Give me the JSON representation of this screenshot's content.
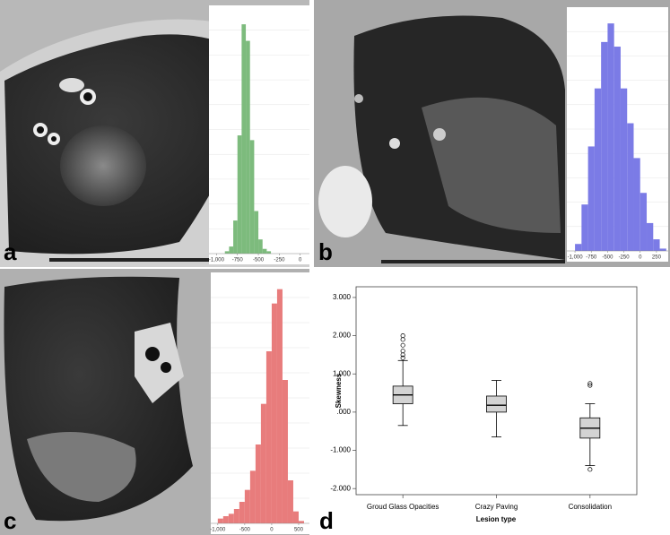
{
  "chart_data": [
    {
      "type": "histogram",
      "panel": "a",
      "color": "#7dbb7d",
      "bins": [
        -1000,
        -950,
        -900,
        -850,
        -800,
        -750,
        -700,
        -650,
        -600,
        -550,
        -500,
        -450,
        -400,
        -350,
        -300,
        -250,
        -200,
        -150,
        -100,
        -50,
        0
      ],
      "counts": [
        0,
        0,
        1,
        3,
        14,
        50,
        97,
        90,
        48,
        18,
        6,
        2,
        1,
        0,
        0,
        0,
        0,
        0,
        0,
        0
      ],
      "xlim": [
        -1090,
        110
      ],
      "ylim": [
        0,
        105
      ],
      "xticks": [
        {
          "value": -1000,
          "label": "-1,000"
        },
        -750,
        -500,
        -250,
        0
      ]
    },
    {
      "type": "histogram",
      "panel": "b",
      "color": "#7b7be6",
      "bins": [
        -1000,
        -900,
        -800,
        -700,
        -600,
        -500,
        -400,
        -300,
        -200,
        -100,
        0,
        100,
        200,
        300,
        400
      ],
      "counts": [
        3,
        20,
        45,
        70,
        90,
        98,
        88,
        70,
        55,
        40,
        25,
        12,
        5,
        1
      ],
      "xlim": [
        -1125,
        430
      ],
      "ylim": [
        0,
        105
      ],
      "xticks": [
        {
          "value": -1000,
          "label": "-1,000"
        },
        -750,
        -500,
        -250,
        0,
        250
      ]
    },
    {
      "type": "histogram",
      "panel": "c",
      "color": "#e87c7c",
      "bins": [
        -1000,
        -900,
        -800,
        -700,
        -600,
        -500,
        -400,
        -300,
        -200,
        -100,
        0,
        100,
        200,
        300,
        400,
        500,
        600
      ],
      "counts": [
        2,
        3,
        4,
        6,
        9,
        14,
        22,
        33,
        50,
        72,
        92,
        98,
        60,
        18,
        5,
        1
      ],
      "xlim": [
        -1130,
        700
      ],
      "ylim": [
        0,
        105
      ],
      "xticks": [
        {
          "value": -1000,
          "label": "-1,000"
        },
        -500,
        0,
        500
      ]
    },
    {
      "type": "box",
      "panel": "d",
      "xlabel": "Lesion type",
      "ylabel": "Skewness",
      "categories": [
        "Groud Glass Opacities",
        "Crazy Paving",
        "Consolidation"
      ],
      "boxes": [
        {
          "min": -0.35,
          "q1": 0.22,
          "median": 0.45,
          "q3": 0.68,
          "max": 1.35,
          "outliers": [
            1.42,
            1.5,
            1.6,
            1.75,
            1.9,
            2.0
          ]
        },
        {
          "min": -0.65,
          "q1": 0.0,
          "median": 0.18,
          "q3": 0.42,
          "max": 0.83,
          "outliers": []
        },
        {
          "min": -1.4,
          "q1": -0.68,
          "median": -0.42,
          "q3": -0.15,
          "max": 0.22,
          "outliers": [
            0.7,
            0.75,
            -1.5
          ]
        }
      ],
      "color": "#d3d3d3",
      "ylim": [
        -2.16,
        3.28
      ],
      "yticks": [
        {
          "value": 3,
          "label": "3.000"
        },
        {
          "value": 2,
          "label": "2.000"
        },
        {
          "value": 1,
          "label": "1.000"
        },
        {
          "value": 0,
          "label": ".000"
        },
        {
          "value": -1,
          "label": "-1.000"
        },
        {
          "value": -2,
          "label": "-2.000"
        }
      ]
    }
  ]
}
